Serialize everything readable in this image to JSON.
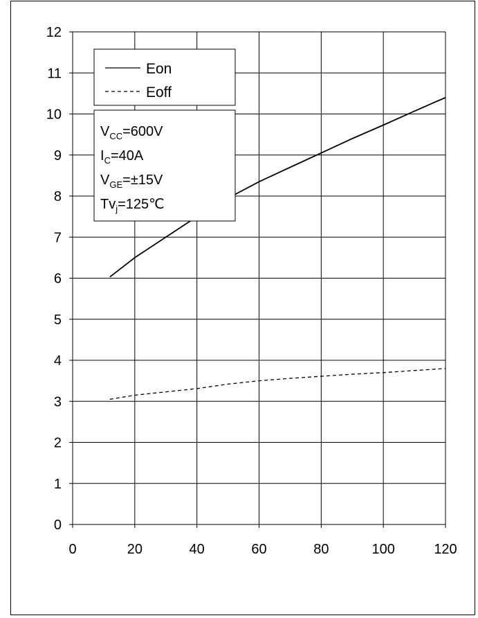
{
  "chart_data": {
    "type": "line",
    "title": "",
    "xlabel": "",
    "ylabel": "",
    "xlim": [
      0,
      120
    ],
    "ylim": [
      0,
      12
    ],
    "x_ticks": [
      0,
      20,
      40,
      60,
      80,
      100,
      120
    ],
    "y_ticks": [
      0,
      1,
      2,
      3,
      4,
      5,
      6,
      7,
      8,
      9,
      10,
      11,
      12
    ],
    "grid": true,
    "legend_position": "top-left",
    "series": [
      {
        "name": "Eon",
        "style": "solid",
        "color": "#000000",
        "x": [
          12,
          20,
          30,
          40,
          50,
          60,
          70,
          80,
          90,
          100,
          110,
          120
        ],
        "y": [
          6.03,
          6.5,
          7.0,
          7.5,
          7.95,
          8.35,
          8.7,
          9.05,
          9.4,
          9.73,
          10.07,
          10.4
        ]
      },
      {
        "name": "Eoff",
        "style": "dashed",
        "color": "#000000",
        "x": [
          12,
          20,
          30,
          40,
          50,
          60,
          70,
          80,
          90,
          100,
          110,
          120
        ],
        "y": [
          3.05,
          3.15,
          3.23,
          3.31,
          3.42,
          3.5,
          3.56,
          3.61,
          3.66,
          3.7,
          3.75,
          3.8
        ]
      }
    ],
    "conditions": [
      {
        "base": "V",
        "sub": "CC",
        "rest": "=600V"
      },
      {
        "base": "I",
        "sub": "C",
        "rest": "=40A"
      },
      {
        "base": "V",
        "sub": "GE",
        "rest": "=±15V"
      },
      {
        "base": "Tv",
        "sub": "j",
        "rest": "=125℃"
      }
    ]
  }
}
